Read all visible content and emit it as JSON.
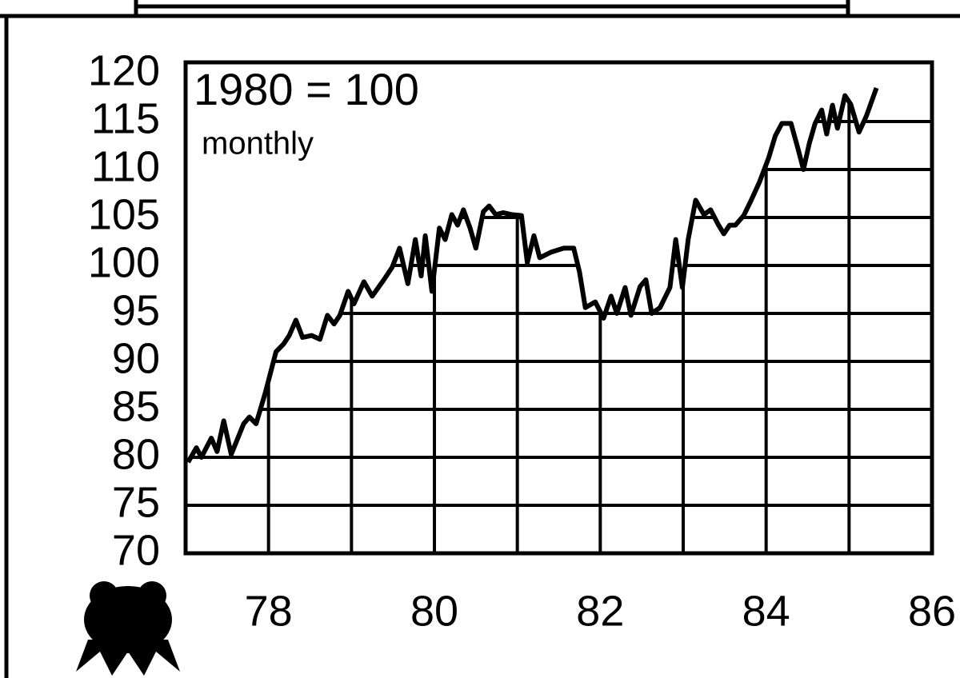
{
  "chart_data": {
    "type": "line",
    "annotations": [
      "1980 = 100",
      "monthly"
    ],
    "x": [
      77.03,
      77.13,
      77.19,
      77.31,
      77.38,
      77.46,
      77.55,
      77.7,
      77.77,
      77.85,
      77.96,
      78.09,
      78.18,
      78.25,
      78.33,
      78.41,
      78.52,
      78.62,
      78.71,
      78.79,
      78.86,
      78.96,
      79.03,
      79.15,
      79.25,
      79.39,
      79.49,
      79.58,
      79.68,
      79.77,
      79.84,
      79.89,
      79.97,
      80.06,
      80.13,
      80.21,
      80.28,
      80.35,
      80.43,
      80.5,
      80.59,
      80.66,
      80.74,
      80.83,
      80.93,
      81.05,
      81.12,
      81.2,
      81.27,
      81.41,
      81.56,
      81.68,
      81.75,
      81.82,
      81.94,
      82.04,
      82.13,
      82.2,
      82.3,
      82.37,
      82.48,
      82.55,
      82.62,
      82.72,
      82.84,
      82.91,
      82.99,
      83.06,
      83.15,
      83.25,
      83.33,
      83.42,
      83.49,
      83.56,
      83.63,
      83.73,
      83.82,
      83.92,
      84.03,
      84.11,
      84.19,
      84.3,
      84.38,
      84.45,
      84.52,
      84.59,
      84.67,
      84.73,
      84.8,
      84.86,
      84.95,
      85.02,
      85.12,
      85.21,
      85.33
    ],
    "series": [
      {
        "color": "#000000",
        "values": [
          79.5,
          81,
          80,
          82,
          80.6,
          83.8,
          80.3,
          83.5,
          84.2,
          83.5,
          86.7,
          91,
          91.8,
          92.7,
          94.3,
          92.5,
          92.7,
          92.3,
          94.8,
          93.9,
          94.8,
          97.3,
          96,
          98.3,
          96.8,
          98.5,
          99.8,
          101.8,
          98.1,
          102.7,
          98.9,
          103.1,
          97.3,
          103.9,
          102.7,
          105.3,
          104.2,
          105.8,
          103.9,
          101.8,
          105.6,
          106.2,
          105.3,
          105.5,
          105.3,
          105.2,
          100.3,
          103.1,
          100.8,
          101.4,
          101.8,
          101.8,
          99.3,
          95.6,
          96.2,
          94.5,
          96.8,
          95,
          97.7,
          94.8,
          97.8,
          98.5,
          95,
          95.6,
          97.7,
          102.7,
          97.7,
          102.7,
          106.8,
          105.3,
          105.8,
          104.3,
          103.3,
          104.2,
          104.2,
          105.2,
          106.8,
          108.7,
          111.2,
          113.5,
          114.8,
          114.8,
          112.3,
          110,
          112.7,
          114.8,
          116.2,
          113.7,
          116.7,
          114.3,
          117.7,
          116.8,
          113.9,
          115.6,
          118.5
        ]
      }
    ],
    "xlim": [
      77,
      86
    ],
    "xticks": [
      78,
      80,
      82,
      84,
      86
    ],
    "x_minor_ticks": [
      79,
      81,
      83,
      85
    ],
    "ylim": [
      70,
      120
    ],
    "yticks": [
      70,
      75,
      80,
      85,
      90,
      95,
      100,
      105,
      110,
      115,
      120
    ],
    "grid": true
  }
}
